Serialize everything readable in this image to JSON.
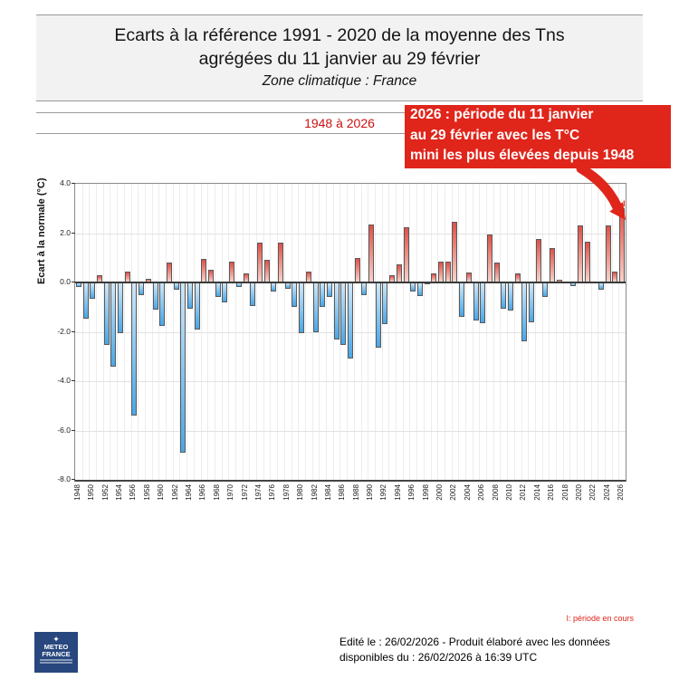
{
  "header": {
    "title_line1": "Ecarts à la référence 1991 - 2020 de la moyenne des Tns",
    "title_line2": "agrégées du 11 janvier au 29 février",
    "subtitle": "Zone climatique : France",
    "period_label": "1948 à 2026"
  },
  "annotation": {
    "line1": "2026 : période du 11 janvier",
    "line2": "au 29 février avec les T°C",
    "line3": "mini les plus élevées depuis 1948",
    "bg_color": "#e0251b"
  },
  "legend": {
    "current_period": "I: période en cours"
  },
  "footer": {
    "line1": "Edité le : 26/02/2026 - Produit élaboré avec les données",
    "line2": "disponibles du : 26/02/2026 à 16:39 UTC"
  },
  "logo": {
    "glyph": "✦",
    "name_line1": "METEO",
    "name_line2": "FRANCE"
  },
  "chart_data": {
    "type": "bar",
    "title": "Ecarts à la référence 1991 - 2020 de la moyenne des Tns agrégées du 11 janvier au 29 février",
    "xlabel": "",
    "ylabel": "Ecart à la normale (°C)",
    "ylim": [
      -8.0,
      4.0
    ],
    "yticks": [
      "4.0",
      "2.0",
      "0.0",
      "-2.0",
      "-4.0",
      "-6.0",
      "-8.0"
    ],
    "ytick_values": [
      4,
      2,
      0,
      -2,
      -4,
      -6,
      -8
    ],
    "xtick_step": 2,
    "grid": true,
    "positive_color": "#df5047",
    "negative_color": "#47a7e8",
    "current_period_marker": {
      "year": 2026,
      "glyph": "I"
    },
    "years": [
      1948,
      1949,
      1950,
      1951,
      1952,
      1953,
      1954,
      1955,
      1956,
      1957,
      1958,
      1959,
      1960,
      1961,
      1962,
      1963,
      1964,
      1965,
      1966,
      1967,
      1968,
      1969,
      1970,
      1971,
      1972,
      1973,
      1974,
      1975,
      1976,
      1977,
      1978,
      1979,
      1980,
      1981,
      1982,
      1983,
      1984,
      1985,
      1986,
      1987,
      1988,
      1989,
      1990,
      1991,
      1992,
      1993,
      1994,
      1995,
      1996,
      1997,
      1998,
      1999,
      2000,
      2001,
      2002,
      2003,
      2004,
      2005,
      2006,
      2007,
      2008,
      2009,
      2010,
      2011,
      2012,
      2013,
      2014,
      2015,
      2016,
      2017,
      2018,
      2019,
      2020,
      2021,
      2022,
      2023,
      2024,
      2025,
      2026
    ],
    "values": [
      -0.2,
      -1.45,
      -0.65,
      0.3,
      -2.55,
      -3.4,
      -2.05,
      0.45,
      -5.4,
      -0.5,
      0.15,
      -1.1,
      -1.75,
      0.8,
      -0.3,
      -6.9,
      -1.05,
      -1.9,
      0.95,
      0.5,
      -0.6,
      -0.8,
      0.85,
      -0.2,
      0.35,
      -0.95,
      1.6,
      0.9,
      -0.35,
      1.6,
      -0.25,
      -1.0,
      -2.05,
      0.45,
      -2.0,
      -1.0,
      -0.6,
      -2.3,
      -2.55,
      -3.1,
      1.0,
      -0.5,
      2.35,
      -2.65,
      -1.7,
      0.3,
      0.75,
      2.25,
      -0.35,
      -0.55,
      -0.05,
      0.35,
      0.85,
      0.85,
      2.45,
      -1.4,
      0.4,
      -1.55,
      -1.65,
      1.95,
      0.8,
      -1.05,
      -1.15,
      0.35,
      -2.4,
      -1.6,
      1.75,
      -0.6,
      1.4,
      0.1,
      0.05,
      -0.15,
      2.3,
      1.65,
      0.05,
      -0.3,
      2.3,
      0.45,
      3.0
    ]
  }
}
